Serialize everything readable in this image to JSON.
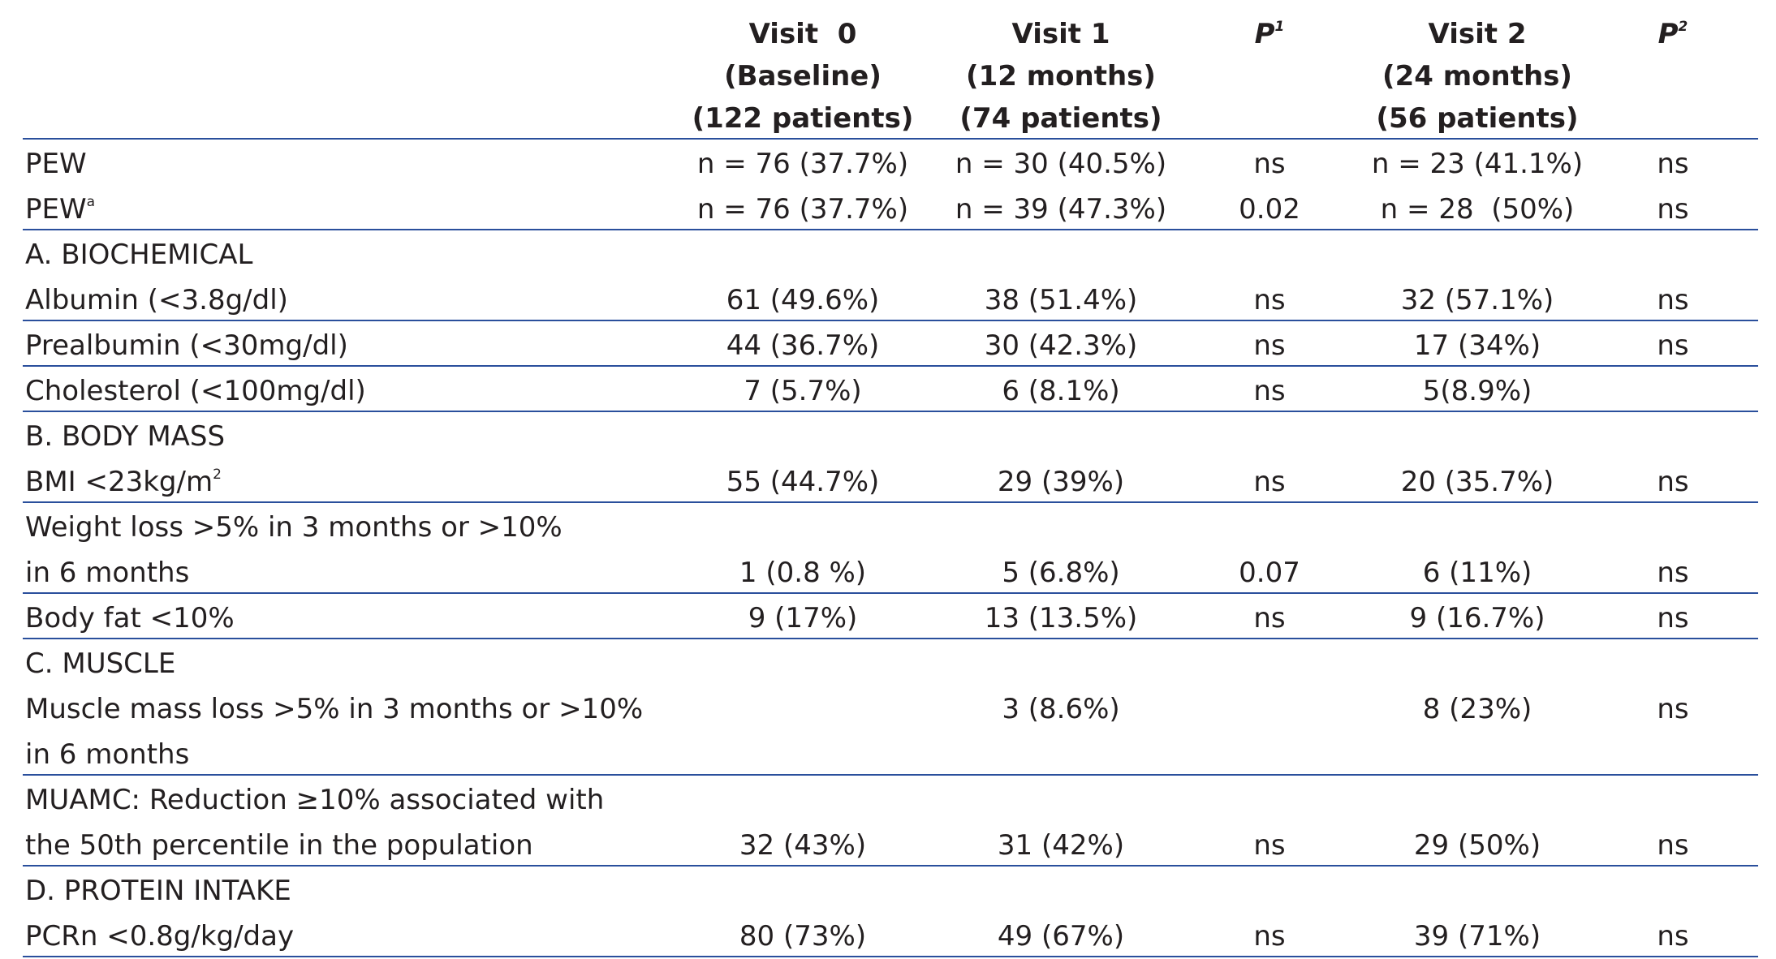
{
  "header": {
    "columns": [
      {
        "lines": [
          "Visit  0",
          "(Baseline)",
          "(122 patients)"
        ]
      },
      {
        "lines": [
          "Visit 1",
          "(12 months)",
          "(74 patients)"
        ]
      },
      {
        "text": "P",
        "sup": "1"
      },
      {
        "lines": [
          "Visit 2",
          "(24 months)",
          "(56 patients)"
        ]
      },
      {
        "text": "P",
        "sup": "2"
      }
    ]
  },
  "groups": [
    {
      "rows": [
        {
          "label": "PEW",
          "cells": [
            "n = 76 (37.7%)",
            "n = 30 (40.5%)",
            "ns",
            "n = 23 (41.1%)",
            "ns"
          ]
        },
        {
          "label": "PEW",
          "label_sup": "a",
          "cells": [
            "n = 76 (37.7%)",
            "n = 39 (47.3%)",
            "0.02",
            "n = 28  (50%)",
            "ns"
          ]
        }
      ]
    },
    {
      "rows": [
        {
          "label": "A. BIOCHEMICAL"
        },
        {
          "label": "Albumin (<3.8g/dl)",
          "cells": [
            "61 (49.6%)",
            "38 (51.4%)",
            "ns",
            "32 (57.1%)",
            "ns"
          ]
        }
      ]
    },
    {
      "rows": [
        {
          "label": "Prealbumin (<30mg/dl)",
          "cells": [
            "44 (36.7%)",
            "30 (42.3%)",
            "ns",
            "17 (34%)",
            "ns"
          ]
        }
      ]
    },
    {
      "rows": [
        {
          "label": "Cholesterol (<100mg/dl)",
          "cells": [
            "7 (5.7%)",
            "6 (8.1%)",
            "ns",
            "5(8.9%)",
            null
          ]
        }
      ]
    },
    {
      "rows": [
        {
          "label": "B. BODY MASS"
        },
        {
          "label": "BMI <23kg/m",
          "label_sup": "2",
          "cells": [
            "55 (44.7%)",
            "29 (39%)",
            "ns",
            "20 (35.7%)",
            "ns"
          ]
        }
      ]
    },
    {
      "rows": [
        {
          "label": "Weight loss >5% in 3 months or >10%"
        },
        {
          "label": "in 6 months",
          "cells": [
            "1 (0.8 %)",
            "5 (6.8%)",
            "0.07",
            "6 (11%)",
            "ns"
          ]
        }
      ]
    },
    {
      "rows": [
        {
          "label": "Body fat <10%",
          "cells": [
            "9 (17%)",
            "13 (13.5%)",
            "ns",
            "9 (16.7%)",
            "ns"
          ]
        }
      ]
    },
    {
      "rows": [
        {
          "label": "C. MUSCLE"
        },
        {
          "label": "Muscle mass loss >5% in 3 months or >10%",
          "cells": [
            null,
            "3 (8.6%)",
            null,
            "8 (23%)",
            "ns"
          ]
        },
        {
          "label": "in 6 months"
        }
      ]
    },
    {
      "rows": [
        {
          "label": "MUAMC: Reduction ≥10% associated with"
        },
        {
          "label": "the 50th percentile in the population",
          "cells": [
            "32 (43%)",
            "31 (42%)",
            "ns",
            "29 (50%)",
            "ns"
          ]
        }
      ]
    },
    {
      "rows": [
        {
          "label": "D. PROTEIN INTAKE"
        },
        {
          "label": "PCRn <0.8g/kg/day",
          "cells": [
            "80 (73%)",
            "49 (67%)",
            "ns",
            "39 (71%)",
            "ns"
          ]
        }
      ]
    }
  ]
}
